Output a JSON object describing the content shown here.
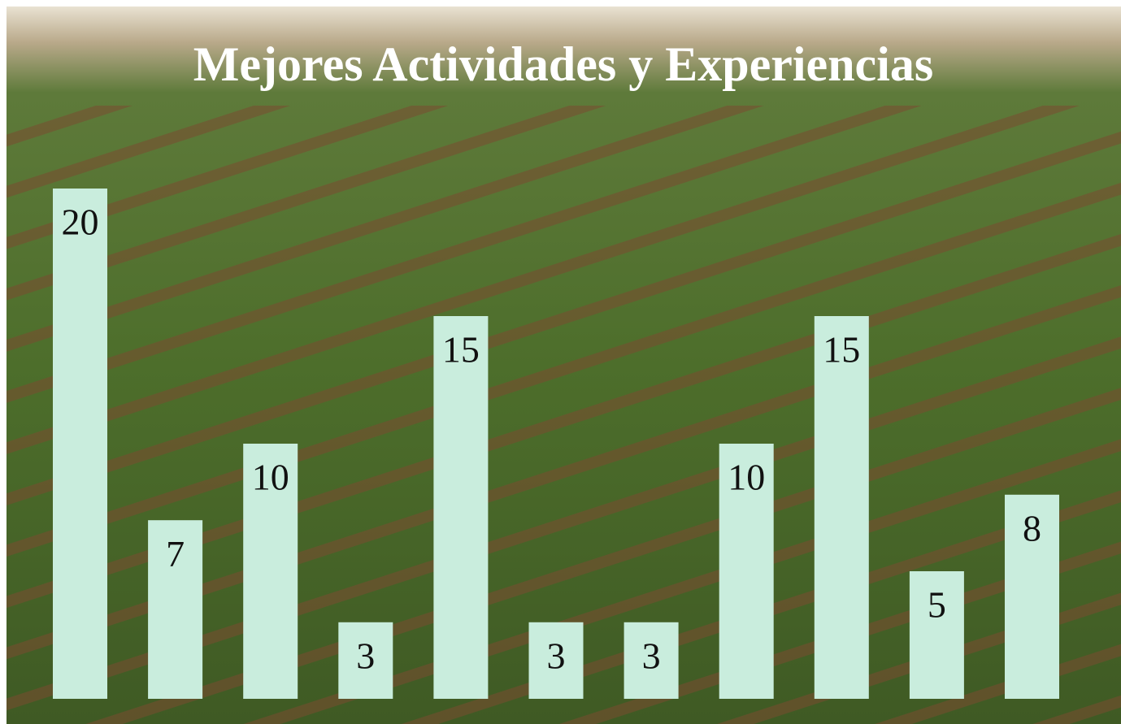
{
  "chart_data": {
    "type": "bar",
    "title": "Mejores Actividades y Experiencias",
    "values": [
      20,
      7,
      10,
      3,
      15,
      3,
      3,
      10,
      15,
      5,
      8
    ],
    "color": "#c9eddd",
    "ylim": [
      0,
      20
    ]
  }
}
